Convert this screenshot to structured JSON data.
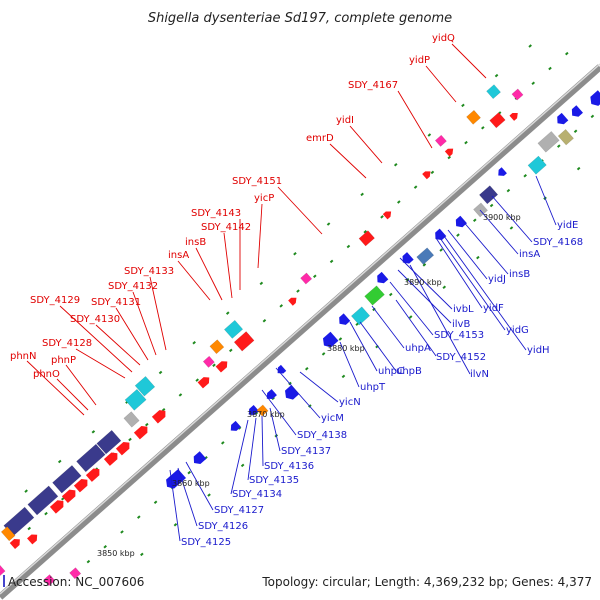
{
  "title": "Shigella dysenteriae Sd197, complete genome",
  "footer": {
    "accession": "Accession: NC_007606",
    "summary": "Topology: circular; Length: 4,369,232 bp; Genes: 4,377"
  },
  "colors": {
    "backbone": "#8c8c8c",
    "forward_gene": "#ff0000",
    "reverse_gene": "#0000e6",
    "forward_label": "#e00000",
    "reverse_label": "#1a1acc",
    "tick": "#1f8a1f"
  },
  "scale_labels": [
    "3850 kbp",
    "3860 kbp",
    "3870 kbp",
    "3880 kbp",
    "3890 kbp",
    "3900 kbp"
  ],
  "forward_genes": [
    "phnO",
    "phnP",
    "phnN",
    "SDY_4128",
    "SDY_4129",
    "SDY_4130",
    "SDY_4131",
    "SDY_4132",
    "SDY_4133",
    "insA",
    "insB",
    "SDY_4142",
    "SDY_4143",
    "yicP",
    "SDY_4151",
    "emrD",
    "yidI",
    "SDY_4167",
    "yidP",
    "yidQ"
  ],
  "reverse_genes": [
    "SDY_4125",
    "SDY_4126",
    "SDY_4127",
    "SDY_4134",
    "SDY_4135",
    "SDY_4136",
    "SDY_4137",
    "SDY_4138",
    "yicM",
    "yicN",
    "uhpT",
    "uhpC",
    "uhpB",
    "uhpA",
    "SDY_4152",
    "ilvN",
    "SDY_4153",
    "ilvB",
    "ivbL",
    "yidF",
    "yidG",
    "yidH",
    "yidJ",
    "insB",
    "insA",
    "SDY_4168",
    "yidE"
  ]
}
